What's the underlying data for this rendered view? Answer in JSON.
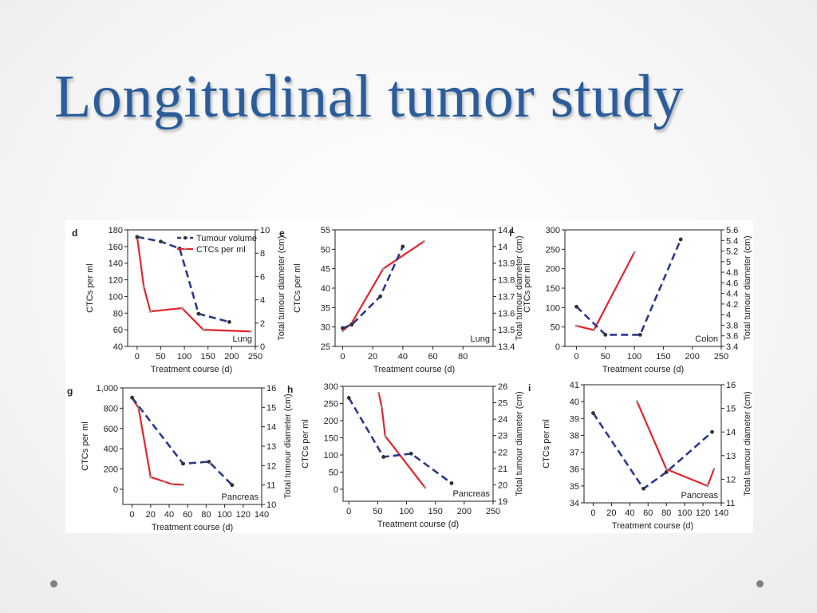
{
  "slide": {
    "title": "Longitudinal tumor study"
  },
  "legend": {
    "tumour": "Tumour volume",
    "ctc": "CTCs per ml"
  },
  "colors": {
    "ctc": "#e8232b",
    "tumour": "#2b3a8c",
    "axis": "#222222",
    "marker": "#333333"
  },
  "icons": {
    "nav_prev": "dot-icon",
    "nav_next": "dot-icon"
  },
  "chart_data": [
    {
      "type": "line",
      "panel": "d",
      "tag": "Lung",
      "xlabel": "Treatment course (d)",
      "ylabel": "CTCs per ml",
      "y2label": "Total tumour diameter (cm)",
      "xlim": [
        -20,
        250
      ],
      "xticks": [
        0,
        50,
        100,
        150,
        200,
        250
      ],
      "ylim": [
        40,
        180
      ],
      "yticks": [
        40,
        60,
        80,
        100,
        120,
        140,
        160,
        180
      ],
      "y2lim": [
        0,
        10
      ],
      "y2ticks": [
        0,
        2,
        4,
        6,
        8,
        10
      ],
      "legend": "top-right",
      "series": [
        {
          "name": "CTCs per ml",
          "axis": "left",
          "x": [
            0,
            14,
            28,
            95,
            140,
            240
          ],
          "y": [
            172,
            112,
            82,
            86,
            60,
            58
          ]
        },
        {
          "name": "Tumour volume",
          "axis": "right",
          "x": [
            0,
            50,
            90,
            130,
            195
          ],
          "y": [
            9.4,
            9.0,
            8.4,
            2.8,
            2.1
          ]
        }
      ]
    },
    {
      "type": "line",
      "panel": "e",
      "tag": "Lung",
      "xlabel": "Treatment course (d)",
      "ylabel": "CTCs per ml",
      "y2label": "Total tumour diameter (cm)",
      "xlim": [
        -5,
        100
      ],
      "xticks": [
        0,
        20,
        40,
        60,
        80
      ],
      "ylim": [
        25,
        55
      ],
      "yticks": [
        25,
        30,
        35,
        40,
        45,
        50,
        55
      ],
      "y2lim": [
        13.4,
        14.1
      ],
      "y2ticks": [
        13.4,
        13.5,
        13.6,
        13.7,
        13.8,
        13.9,
        14.0,
        14.1
      ],
      "series": [
        {
          "name": "CTCs per ml",
          "axis": "left",
          "x": [
            0,
            6,
            27,
            54
          ],
          "y": [
            29,
            31,
            45,
            52
          ]
        },
        {
          "name": "Tumour volume",
          "axis": "right",
          "x": [
            0,
            6,
            25,
            40
          ],
          "y": [
            13.51,
            13.53,
            13.7,
            14.0
          ]
        }
      ]
    },
    {
      "type": "line",
      "panel": "f",
      "tag": "Colon",
      "xlabel": "Treatment course (d)",
      "ylabel": "CTCs per ml",
      "y2label": "Total tumour diameter (cm)",
      "xlim": [
        -20,
        250
      ],
      "xticks": [
        0,
        50,
        100,
        150,
        200,
        250
      ],
      "ylim": [
        0,
        300
      ],
      "yticks": [
        0,
        50,
        100,
        150,
        200,
        250,
        300
      ],
      "y2lim": [
        3.4,
        5.6
      ],
      "y2ticks": [
        3.4,
        3.6,
        3.8,
        4.0,
        4.2,
        4.4,
        4.6,
        4.8,
        5.0,
        5.2,
        5.4,
        5.6
      ],
      "series": [
        {
          "name": "CTCs per ml",
          "axis": "left",
          "x": [
            0,
            30,
            100
          ],
          "y": [
            53,
            42,
            242
          ]
        },
        {
          "name": "Tumour volume",
          "axis": "right",
          "x": [
            0,
            50,
            110,
            180
          ],
          "y": [
            4.15,
            3.62,
            3.62,
            5.42
          ]
        }
      ]
    },
    {
      "type": "line",
      "panel": "g",
      "tag": "Pancreas",
      "xlabel": "Treatment course (d)",
      "ylabel": "CTCs per ml",
      "y2label": "Total tumour diameter (cm)",
      "xlim": [
        -10,
        140
      ],
      "xticks": [
        0,
        20,
        40,
        60,
        80,
        100,
        120,
        140
      ],
      "ylim": [
        -150,
        1000
      ],
      "yticks": [
        0,
        200,
        400,
        600,
        800,
        1000
      ],
      "ytickfmt": "1,000",
      "y2lim": [
        10,
        16
      ],
      "y2ticks": [
        10,
        11,
        12,
        13,
        14,
        15,
        16
      ],
      "series": [
        {
          "name": "CTCs per ml",
          "axis": "left",
          "x": [
            0,
            7,
            20,
            35,
            43,
            55
          ],
          "y": [
            900,
            800,
            120,
            75,
            50,
            45
          ]
        },
        {
          "name": "Tumour volume",
          "axis": "right",
          "x": [
            0,
            55,
            83,
            108
          ],
          "y": [
            15.5,
            12.1,
            12.2,
            11.0
          ]
        }
      ]
    },
    {
      "type": "line",
      "panel": "h",
      "tag": "Pancreas",
      "xlabel": "Treatment course (d)",
      "ylabel": "CTCs per ml",
      "y2label": "Total tumour diameter (cm)",
      "xlim": [
        -10,
        250
      ],
      "xticks": [
        0,
        50,
        100,
        150,
        200,
        250
      ],
      "ylim": [
        -35,
        300
      ],
      "yticks": [
        0,
        50,
        100,
        150,
        200,
        250,
        300
      ],
      "y2lim": [
        19,
        26
      ],
      "y2ticks": [
        19,
        20,
        21,
        22,
        23,
        24,
        25,
        26
      ],
      "series": [
        {
          "name": "CTCs per ml",
          "axis": "left",
          "x": [
            52,
            57,
            63,
            132
          ],
          "y": [
            280,
            240,
            155,
            5
          ]
        },
        {
          "name": "Tumour volume",
          "axis": "right",
          "x": [
            0,
            60,
            108,
            178
          ],
          "y": [
            25.3,
            21.7,
            21.9,
            20.1
          ]
        }
      ]
    },
    {
      "type": "line",
      "panel": "i",
      "tag": "Pancreas",
      "xlabel": "Treatment course (d)",
      "ylabel": "CTCs per ml",
      "y2label": "Total tumour diameter (cm)",
      "xlim": [
        -10,
        140
      ],
      "xticks": [
        0,
        20,
        40,
        60,
        80,
        100,
        120,
        140
      ],
      "ylim": [
        34,
        41
      ],
      "yticks": [
        34,
        35,
        36,
        37,
        38,
        39,
        40,
        41
      ],
      "y2lim": [
        11,
        16
      ],
      "y2ticks": [
        11,
        12,
        13,
        14,
        15,
        16
      ],
      "series": [
        {
          "name": "CTCs per ml",
          "axis": "left",
          "x": [
            48,
            80,
            125,
            132
          ],
          "y": [
            40,
            36,
            35,
            36
          ]
        },
        {
          "name": "Tumour volume",
          "axis": "right",
          "x": [
            0,
            55,
            80,
            130
          ],
          "y": [
            14.8,
            11.6,
            12.3,
            14.0
          ]
        }
      ]
    }
  ]
}
